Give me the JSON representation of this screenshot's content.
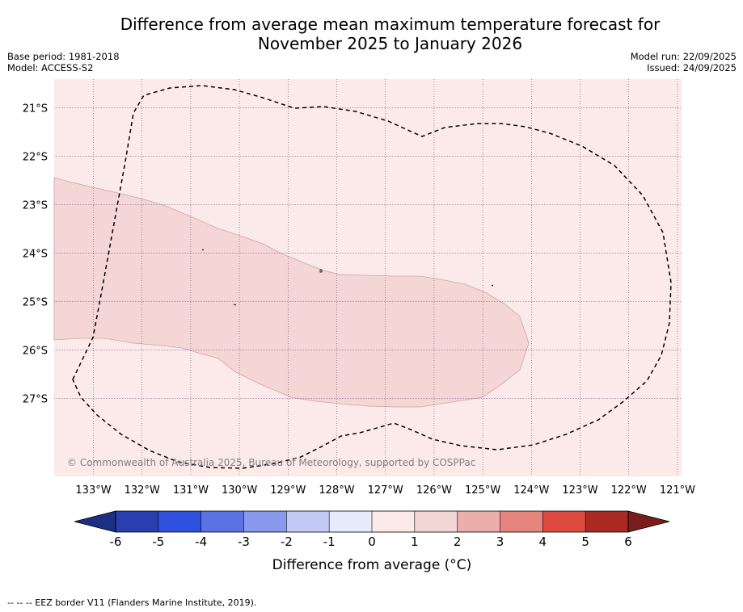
{
  "title_line1": "Difference from average mean maximum temperature forecast for",
  "title_line2": "November 2025 to January 2026",
  "base_period": "Base period: 1981-2018",
  "model": "Model: ACCESS-S2",
  "model_run": "Model run: 22/09/2025",
  "issued": "Issued: 24/09/2025",
  "copyright": "© Commonwealth of Australia 2025, Bureau of Meteorology, supported by COSPPac",
  "map": {
    "longitude_labels": [
      "133°W",
      "132°W",
      "131°W",
      "130°W",
      "129°W",
      "128°W",
      "127°W",
      "126°W",
      "125°W",
      "124°W",
      "123°W",
      "122°W",
      "121°W"
    ],
    "latitude_labels": [
      "21°S",
      "22°S",
      "23°S",
      "24°S",
      "25°S",
      "26°S",
      "27°S"
    ],
    "background_class": "0 to 1",
    "anomaly_region_class": "1 to 2",
    "colors": {
      "background": "#fbeae9",
      "anomaly_region": "#f4d6d6",
      "region_border": "#c9a6a6",
      "grid": "#6a4a6a",
      "eez_border": "#000000"
    }
  },
  "colorbar": {
    "title": "Difference from average (°C)",
    "tick_labels": [
      "-6",
      "-5",
      "-4",
      "-3",
      "-2",
      "-1",
      "0",
      "1",
      "2",
      "3",
      "4",
      "5",
      "6"
    ],
    "low_extension_color": "#1c2f80",
    "high_extension_color": "#7a1c1c",
    "bins": [
      {
        "range": "-6 to -5",
        "color": "#2a3eb1"
      },
      {
        "range": "-5 to -4",
        "color": "#3050e0"
      },
      {
        "range": "-4 to -3",
        "color": "#5a72e6"
      },
      {
        "range": "-3 to -2",
        "color": "#8899ee"
      },
      {
        "range": "-2 to -1",
        "color": "#c3c9f5"
      },
      {
        "range": "-1 to 0",
        "color": "#e8ebfb"
      },
      {
        "range": "0 to 1",
        "color": "#fbeae9"
      },
      {
        "range": "1 to 2",
        "color": "#f4d6d6"
      },
      {
        "range": "2 to 3",
        "color": "#ebaeaa"
      },
      {
        "range": "3 to 4",
        "color": "#e5857e"
      },
      {
        "range": "4 to 5",
        "color": "#dc4a40"
      },
      {
        "range": "5 to 6",
        "color": "#ac2a24"
      }
    ]
  },
  "footnote": "--  --  -- EEZ border V11 (Flanders Marine Institute, 2019)."
}
